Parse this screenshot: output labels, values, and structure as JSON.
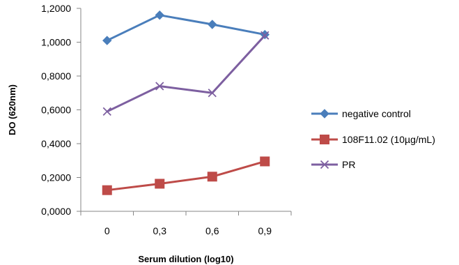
{
  "chart_data": {
    "type": "line",
    "title": "",
    "xlabel": "Serum dilution (log10)",
    "ylabel": "DO (620nm)",
    "categories": [
      "0",
      "0,3",
      "0,6",
      "0,9"
    ],
    "y_ticks": [
      "0,0000",
      "0,2000",
      "0,4000",
      "0,6000",
      "0,8000",
      "1,0000",
      "1,2000"
    ],
    "ylim": [
      0,
      1.2
    ],
    "grid": false,
    "legend_position": "right",
    "series": [
      {
        "name": "negative control",
        "values": [
          1.01,
          1.16,
          1.105,
          1.045
        ],
        "color": "#4a7ebb",
        "marker": "diamond"
      },
      {
        "name": "108F11.02 (10µg/mL)",
        "values": [
          0.125,
          0.163,
          0.205,
          0.295
        ],
        "color": "#be4b48",
        "marker": "square"
      },
      {
        "name": "PR",
        "values": [
          0.59,
          0.74,
          0.7,
          1.04
        ],
        "color": "#7d5fa0",
        "marker": "x"
      }
    ]
  }
}
